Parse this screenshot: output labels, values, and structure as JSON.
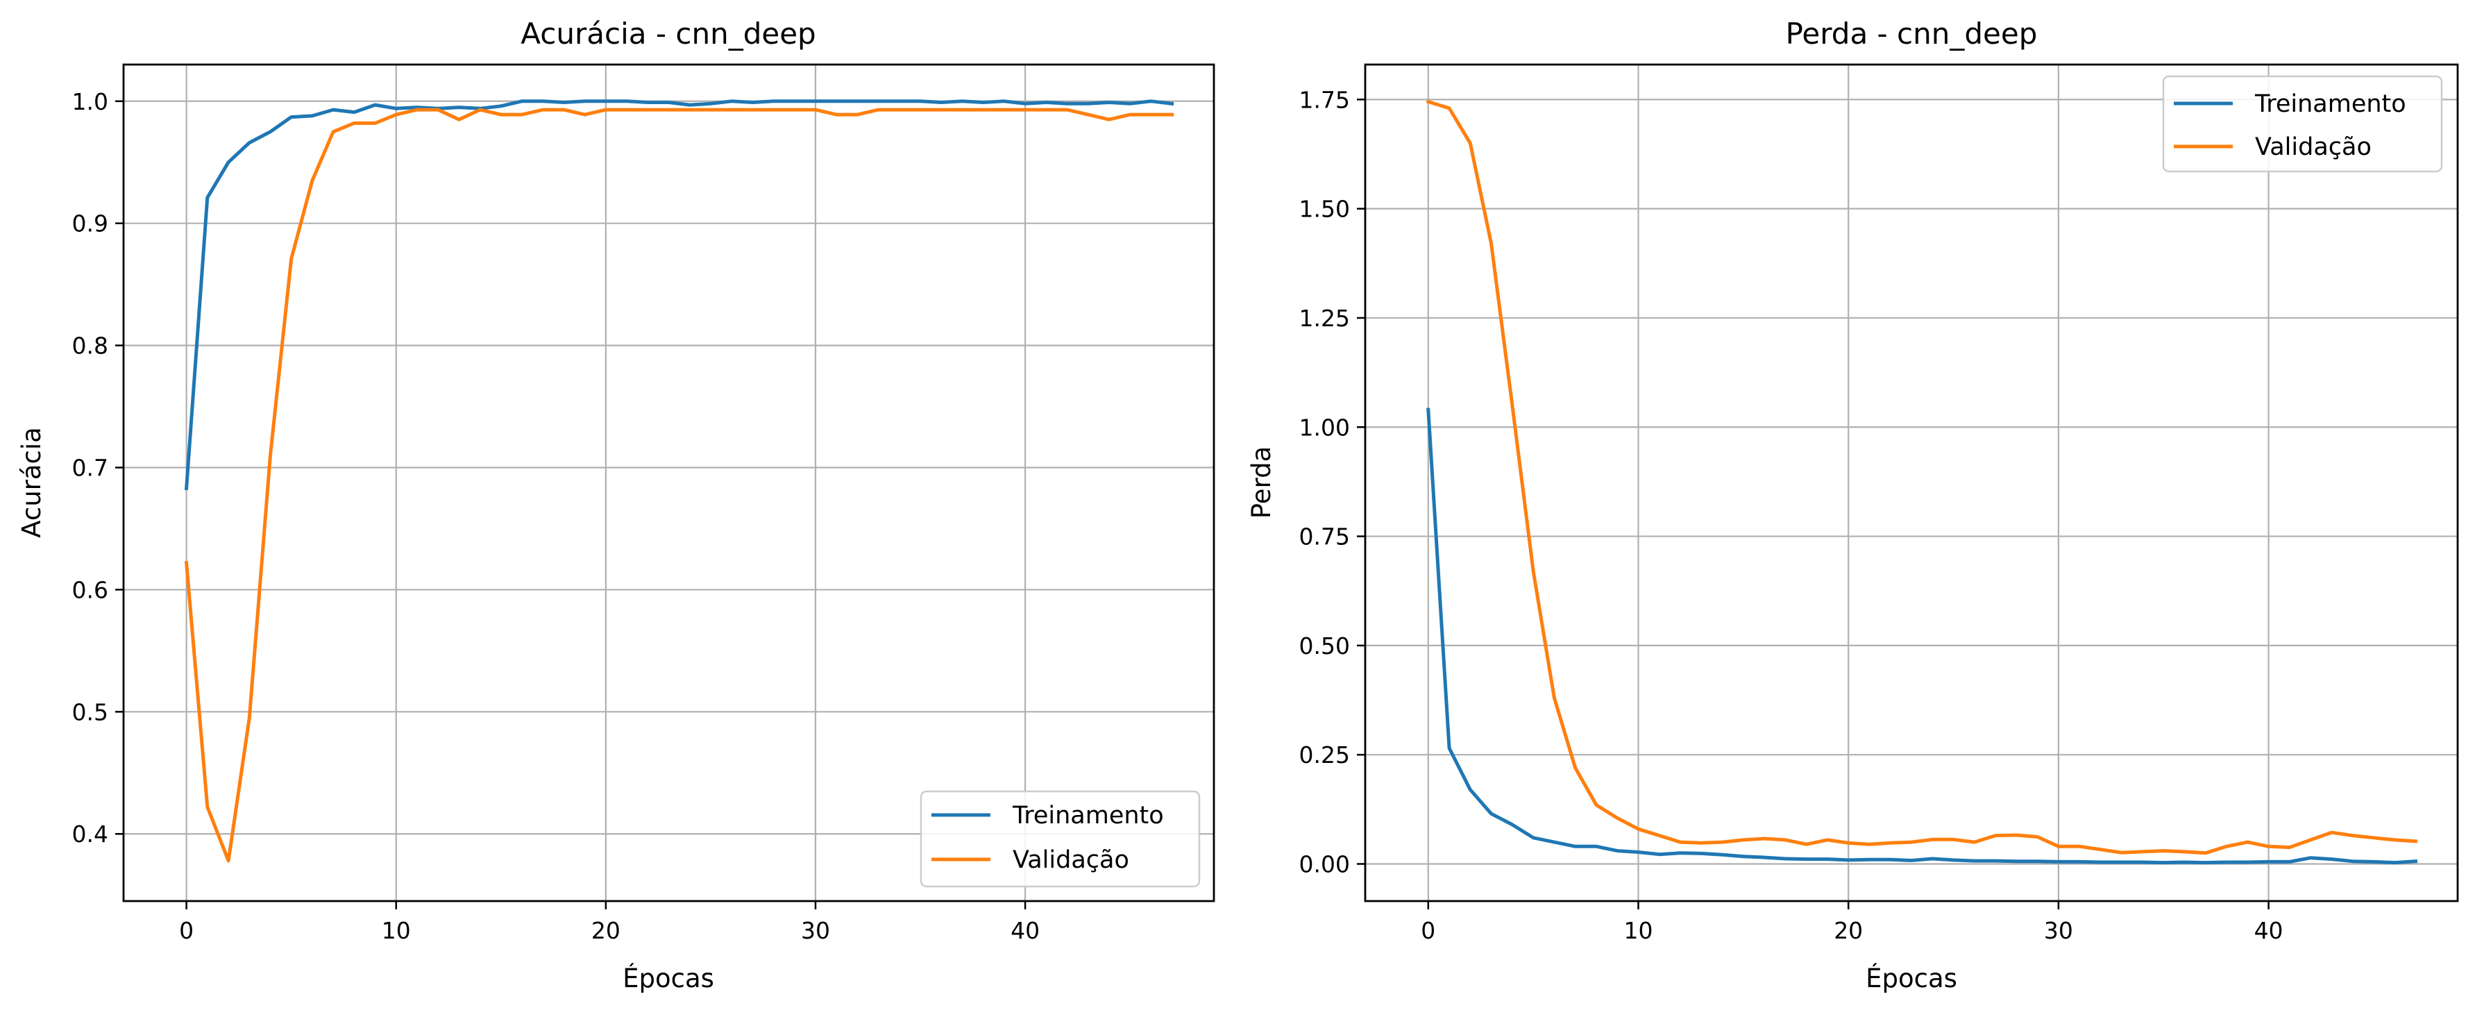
{
  "colors": {
    "train": "#1f77b4",
    "val": "#ff7f0e",
    "grid": "#b0b0b0"
  },
  "chart_data": [
    {
      "type": "line",
      "title": "Acurácia - cnn_deep",
      "xlabel": "Épocas",
      "ylabel": "Acurácia",
      "xlim": [
        -3,
        49
      ],
      "ylim": [
        0.345,
        1.03
      ],
      "xticks": [
        0,
        10,
        20,
        30,
        40
      ],
      "yticks": [
        0.4,
        0.5,
        0.6,
        0.7,
        0.8,
        0.9,
        1.0
      ],
      "ytick_labels": [
        "0.4",
        "0.5",
        "0.6",
        "0.7",
        "0.8",
        "0.9",
        "1.0"
      ],
      "grid": true,
      "legend_position": "lower-right",
      "series": [
        {
          "name": "Treinamento",
          "color": "#1f77b4",
          "x": [
            0,
            1,
            2,
            3,
            4,
            5,
            6,
            7,
            8,
            9,
            10,
            11,
            12,
            13,
            14,
            15,
            16,
            17,
            18,
            19,
            20,
            21,
            22,
            23,
            24,
            25,
            26,
            27,
            28,
            29,
            30,
            31,
            32,
            33,
            34,
            35,
            36,
            37,
            38,
            39,
            40,
            41,
            42,
            43,
            44,
            45,
            46,
            47
          ],
          "values": [
            0.683,
            0.921,
            0.95,
            0.966,
            0.975,
            0.987,
            0.988,
            0.993,
            0.991,
            0.997,
            0.994,
            0.995,
            0.994,
            0.995,
            0.994,
            0.996,
            1.0,
            1.0,
            0.999,
            1.0,
            1.0,
            1.0,
            0.999,
            0.999,
            0.997,
            0.998,
            1.0,
            0.999,
            1.0,
            1.0,
            1.0,
            1.0,
            1.0,
            1.0,
            1.0,
            1.0,
            0.999,
            1.0,
            0.999,
            1.0,
            0.998,
            0.999,
            0.998,
            0.998,
            0.999,
            0.998,
            1.0,
            0.998
          ]
        },
        {
          "name": "Validação",
          "color": "#ff7f0e",
          "x": [
            0,
            1,
            2,
            3,
            4,
            5,
            6,
            7,
            8,
            9,
            10,
            11,
            12,
            13,
            14,
            15,
            16,
            17,
            18,
            19,
            20,
            21,
            22,
            23,
            24,
            25,
            26,
            27,
            28,
            29,
            30,
            31,
            32,
            33,
            34,
            35,
            36,
            37,
            38,
            39,
            40,
            41,
            42,
            43,
            44,
            45,
            46,
            47
          ],
          "values": [
            0.622,
            0.422,
            0.378,
            0.495,
            0.71,
            0.871,
            0.935,
            0.975,
            0.982,
            0.982,
            0.989,
            0.993,
            0.993,
            0.985,
            0.993,
            0.989,
            0.989,
            0.993,
            0.993,
            0.989,
            0.993,
            0.993,
            0.993,
            0.993,
            0.993,
            0.993,
            0.993,
            0.993,
            0.993,
            0.993,
            0.993,
            0.989,
            0.989,
            0.993,
            0.993,
            0.993,
            0.993,
            0.993,
            0.993,
            0.993,
            0.993,
            0.993,
            0.993,
            0.989,
            0.985,
            0.989,
            0.989,
            0.989
          ]
        }
      ]
    },
    {
      "type": "line",
      "title": "Perda - cnn_deep",
      "xlabel": "Épocas",
      "ylabel": "Perda",
      "xlim": [
        -3,
        49
      ],
      "ylim": [
        -0.085,
        1.83
      ],
      "xticks": [
        0,
        10,
        20,
        30,
        40
      ],
      "yticks": [
        0,
        0.25,
        0.5,
        0.75,
        1.0,
        1.25,
        1.5,
        1.75
      ],
      "ytick_labels": [
        "0.00",
        "0.25",
        "0.50",
        "0.75",
        "1.00",
        "1.25",
        "1.50",
        "1.75"
      ],
      "grid": true,
      "legend_position": "upper-right",
      "series": [
        {
          "name": "Treinamento",
          "color": "#1f77b4",
          "x": [
            0,
            1,
            2,
            3,
            4,
            5,
            6,
            7,
            8,
            9,
            10,
            11,
            12,
            13,
            14,
            15,
            16,
            17,
            18,
            19,
            20,
            21,
            22,
            23,
            24,
            25,
            26,
            27,
            28,
            29,
            30,
            31,
            32,
            33,
            34,
            35,
            36,
            37,
            38,
            39,
            40,
            41,
            42,
            43,
            44,
            45,
            46,
            47
          ],
          "values": [
            1.04,
            0.265,
            0.17,
            0.115,
            0.09,
            0.06,
            0.05,
            0.04,
            0.04,
            0.03,
            0.027,
            0.022,
            0.025,
            0.024,
            0.021,
            0.017,
            0.015,
            0.012,
            0.011,
            0.011,
            0.009,
            0.01,
            0.01,
            0.008,
            0.012,
            0.009,
            0.007,
            0.007,
            0.006,
            0.006,
            0.005,
            0.005,
            0.004,
            0.004,
            0.004,
            0.003,
            0.004,
            0.003,
            0.004,
            0.004,
            0.005,
            0.005,
            0.014,
            0.011,
            0.006,
            0.005,
            0.003,
            0.006
          ]
        },
        {
          "name": "Validação",
          "color": "#ff7f0e",
          "x": [
            0,
            1,
            2,
            3,
            4,
            5,
            6,
            7,
            8,
            9,
            10,
            11,
            12,
            13,
            14,
            15,
            16,
            17,
            18,
            19,
            20,
            21,
            22,
            23,
            24,
            25,
            26,
            27,
            28,
            29,
            30,
            31,
            32,
            33,
            34,
            35,
            36,
            37,
            38,
            39,
            40,
            41,
            42,
            43,
            44,
            45,
            46,
            47
          ],
          "values": [
            1.745,
            1.73,
            1.65,
            1.42,
            1.05,
            0.67,
            0.38,
            0.22,
            0.135,
            0.105,
            0.08,
            0.065,
            0.05,
            0.048,
            0.05,
            0.055,
            0.058,
            0.055,
            0.045,
            0.055,
            0.048,
            0.045,
            0.048,
            0.05,
            0.056,
            0.056,
            0.05,
            0.065,
            0.066,
            0.062,
            0.04,
            0.04,
            0.033,
            0.026,
            0.028,
            0.03,
            0.028,
            0.025,
            0.04,
            0.05,
            0.04,
            0.038,
            0.055,
            0.072,
            0.065,
            0.06,
            0.055,
            0.052
          ]
        }
      ]
    }
  ]
}
